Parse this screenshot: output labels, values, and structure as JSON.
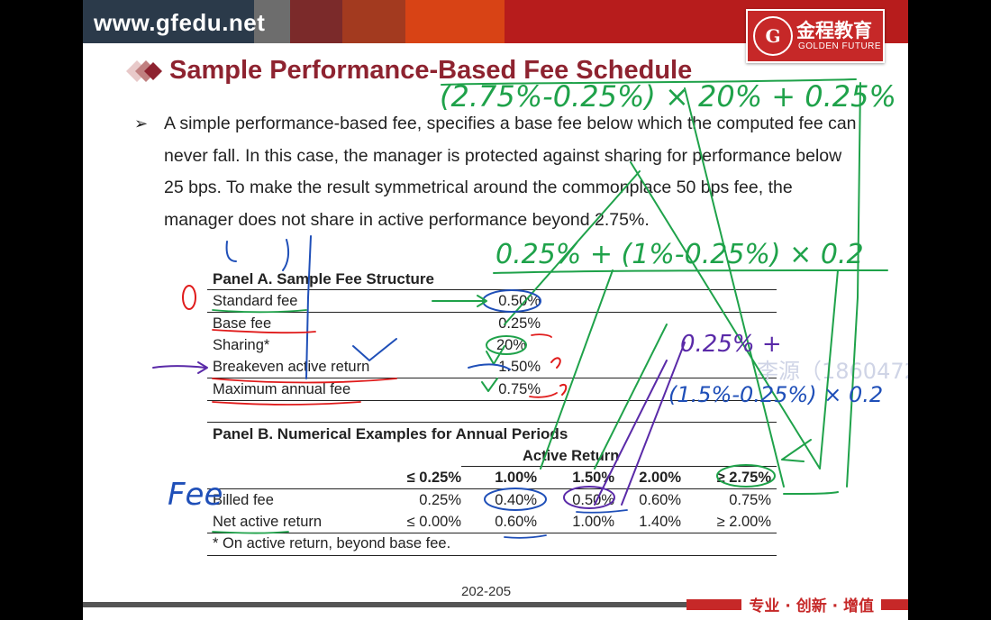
{
  "header": {
    "url": "www.gfedu.net",
    "logo_cn": "金程教育",
    "logo_en": "GOLDEN FUTURE",
    "logo_seal": "G"
  },
  "slide": {
    "title": "Sample Performance-Based Fee Schedule",
    "paragraph": "A simple performance-based fee, specifies a base fee below which the computed fee can never fall. In this case, the manager is protected against sharing for performance below 25 bps. To make the result symmetrical around the commonplace 50 bps fee, the manager does not share in active performance beyond 2.75%.",
    "page_number": "202-205",
    "slogan": "专业 · 创新 · 增值",
    "watermark": "李源（1860472299"
  },
  "panel_a": {
    "title": "Panel A. Sample Fee Structure",
    "rows": [
      {
        "label": "Standard fee",
        "value": "0.50%"
      },
      {
        "label": "Base fee",
        "value": "0.25%"
      },
      {
        "label": "Sharing*",
        "value": "20%"
      },
      {
        "label": "Breakeven active return",
        "value": "1.50%"
      },
      {
        "label": "Maximum annual fee",
        "value": "0.75%"
      }
    ]
  },
  "panel_b": {
    "title": "Panel B. Numerical Examples for Annual Periods",
    "group_header": "Active Return",
    "columns": [
      "≤ 0.25%",
      "1.00%",
      "1.50%",
      "2.00%",
      "≥ 2.75%"
    ],
    "rows": [
      {
        "label": "Billed fee",
        "values": [
          "0.25%",
          "0.40%",
          "0.50%",
          "0.60%",
          "0.75%"
        ]
      },
      {
        "label": "Net active return",
        "values": [
          "≤ 0.00%",
          "0.60%",
          "1.00%",
          "1.40%",
          "≥ 2.00%"
        ]
      }
    ],
    "footnote": "* On active return, beyond base fee."
  },
  "annotations": {
    "formula_top": "(2.75%-0.25%) × 20% + 0.25%",
    "formula_mid": "0.25% + (1%-0.25%) × 0.2",
    "formula_right1": "0.25% +",
    "formula_right2": "(1.5%-0.25%) × 0.2",
    "fee_label": "Fee",
    "marker_0": "0"
  },
  "colors": {
    "brand_red": "#b71c1c",
    "title_red": "#8e2330",
    "ink_green": "#1fa24a",
    "ink_blue": "#1f4fb8",
    "ink_purple": "#5a2aa8",
    "ink_red": "#e01b1b"
  }
}
